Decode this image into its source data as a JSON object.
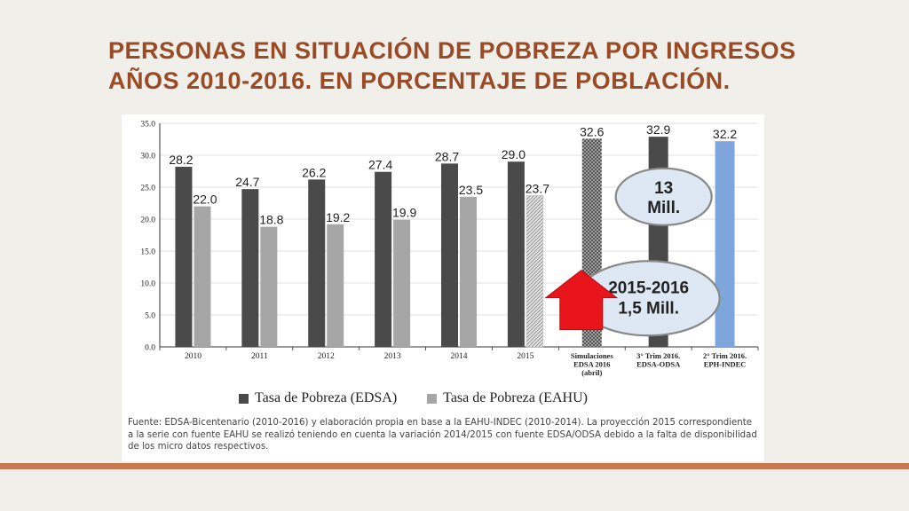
{
  "slide": {
    "title_line1": "Personas en situación de pobreza por ingresos",
    "title_line2": "años 2010-2016. En porcentaje de población."
  },
  "chart_data": {
    "type": "bar",
    "categories": [
      "2010",
      "2011",
      "2012",
      "2013",
      "2014",
      "2015",
      "Simulaciones EDSA 2016 (abril)",
      "3° Trim 2016. EDSA-ODSA",
      "2° Trim 2016. EPH-INDEC"
    ],
    "category_label_lines": [
      [
        "2010"
      ],
      [
        "2011"
      ],
      [
        "2012"
      ],
      [
        "2013"
      ],
      [
        "2014"
      ],
      [
        "2015"
      ],
      [
        "Simulaciones",
        "EDSA 2016",
        "(abril)"
      ],
      [
        "3° Trim 2016.",
        "EDSA-ODSA"
      ],
      [
        "2° Trim 2016.",
        "EPH-INDEC"
      ]
    ],
    "series": [
      {
        "name": "Tasa de Pobreza (EDSA)",
        "color": "#4a4a4a",
        "values": [
          28.2,
          24.7,
          26.2,
          27.4,
          28.7,
          29.0,
          null,
          null,
          null
        ]
      },
      {
        "name": "Tasa de Pobreza (EAHU)",
        "color": "#a6a6a6",
        "values": [
          22.0,
          18.8,
          19.2,
          19.9,
          23.5,
          23.7,
          null,
          null,
          null
        ]
      }
    ],
    "extra_bars": [
      {
        "category": "2015",
        "value": 23.7,
        "style": "hatched-light"
      },
      {
        "category": "Simulaciones EDSA 2016 (abril)",
        "value": 32.6,
        "style": "hatched-dark"
      },
      {
        "category": "3° Trim 2016. EDSA-ODSA",
        "value": 32.9,
        "style": "solid-dark"
      },
      {
        "category": "2° Trim 2016. EPH-INDEC",
        "value": 32.2,
        "style": "solid-blue",
        "color": "#7ea6dd"
      }
    ],
    "data_labels": [
      {
        "category": "2010",
        "text": "28.2"
      },
      {
        "category": "2010",
        "text": "22.0"
      },
      {
        "category": "2011",
        "text": "24.7"
      },
      {
        "category": "2011",
        "text": "18.8"
      },
      {
        "category": "2012",
        "text": "26.2"
      },
      {
        "category": "2012",
        "text": "19.2"
      },
      {
        "category": "2013",
        "text": "27.4"
      },
      {
        "category": "2013",
        "text": "19.9"
      },
      {
        "category": "2014",
        "text": "28.7"
      },
      {
        "category": "2014",
        "text": "23.5"
      },
      {
        "category": "2015",
        "text": "29.0"
      },
      {
        "category": "2015",
        "text": "23.7"
      },
      {
        "category": "Simulaciones EDSA 2016 (abril)",
        "text": "32.6"
      },
      {
        "category": "3° Trim 2016. EDSA-ODSA",
        "text": "32.9"
      },
      {
        "category": "2° Trim 2016. EPH-INDEC",
        "text": "32.2"
      }
    ],
    "ylim": [
      0,
      35
    ],
    "y_ticks": [
      "0.0",
      "5.0",
      "10.0",
      "15.0",
      "20.0",
      "25.0",
      "30.0",
      "35.0"
    ],
    "gridlines": true,
    "legend_position": "bottom",
    "annotations": [
      {
        "lines": [
          "13",
          "Mill."
        ],
        "shape": "ellipse"
      },
      {
        "lines": [
          "2015-2016",
          "1,5 Mill."
        ],
        "shape": "ellipse"
      },
      {
        "shape": "arrow-up",
        "color": "#e8151b"
      }
    ]
  },
  "source_note": "Fuente: EDSA-Bicentenario (2010-2016) y elaboración propia en base a la EAHU-INDEC (2010-2014). La proyección 2015 correspondiente a la serie con fuente EAHU se realizó teniendo en cuenta la variación 2014/2015 con fuente EDSA/ODSA debido a la falta de disponibilidad de los micro datos respectivos."
}
